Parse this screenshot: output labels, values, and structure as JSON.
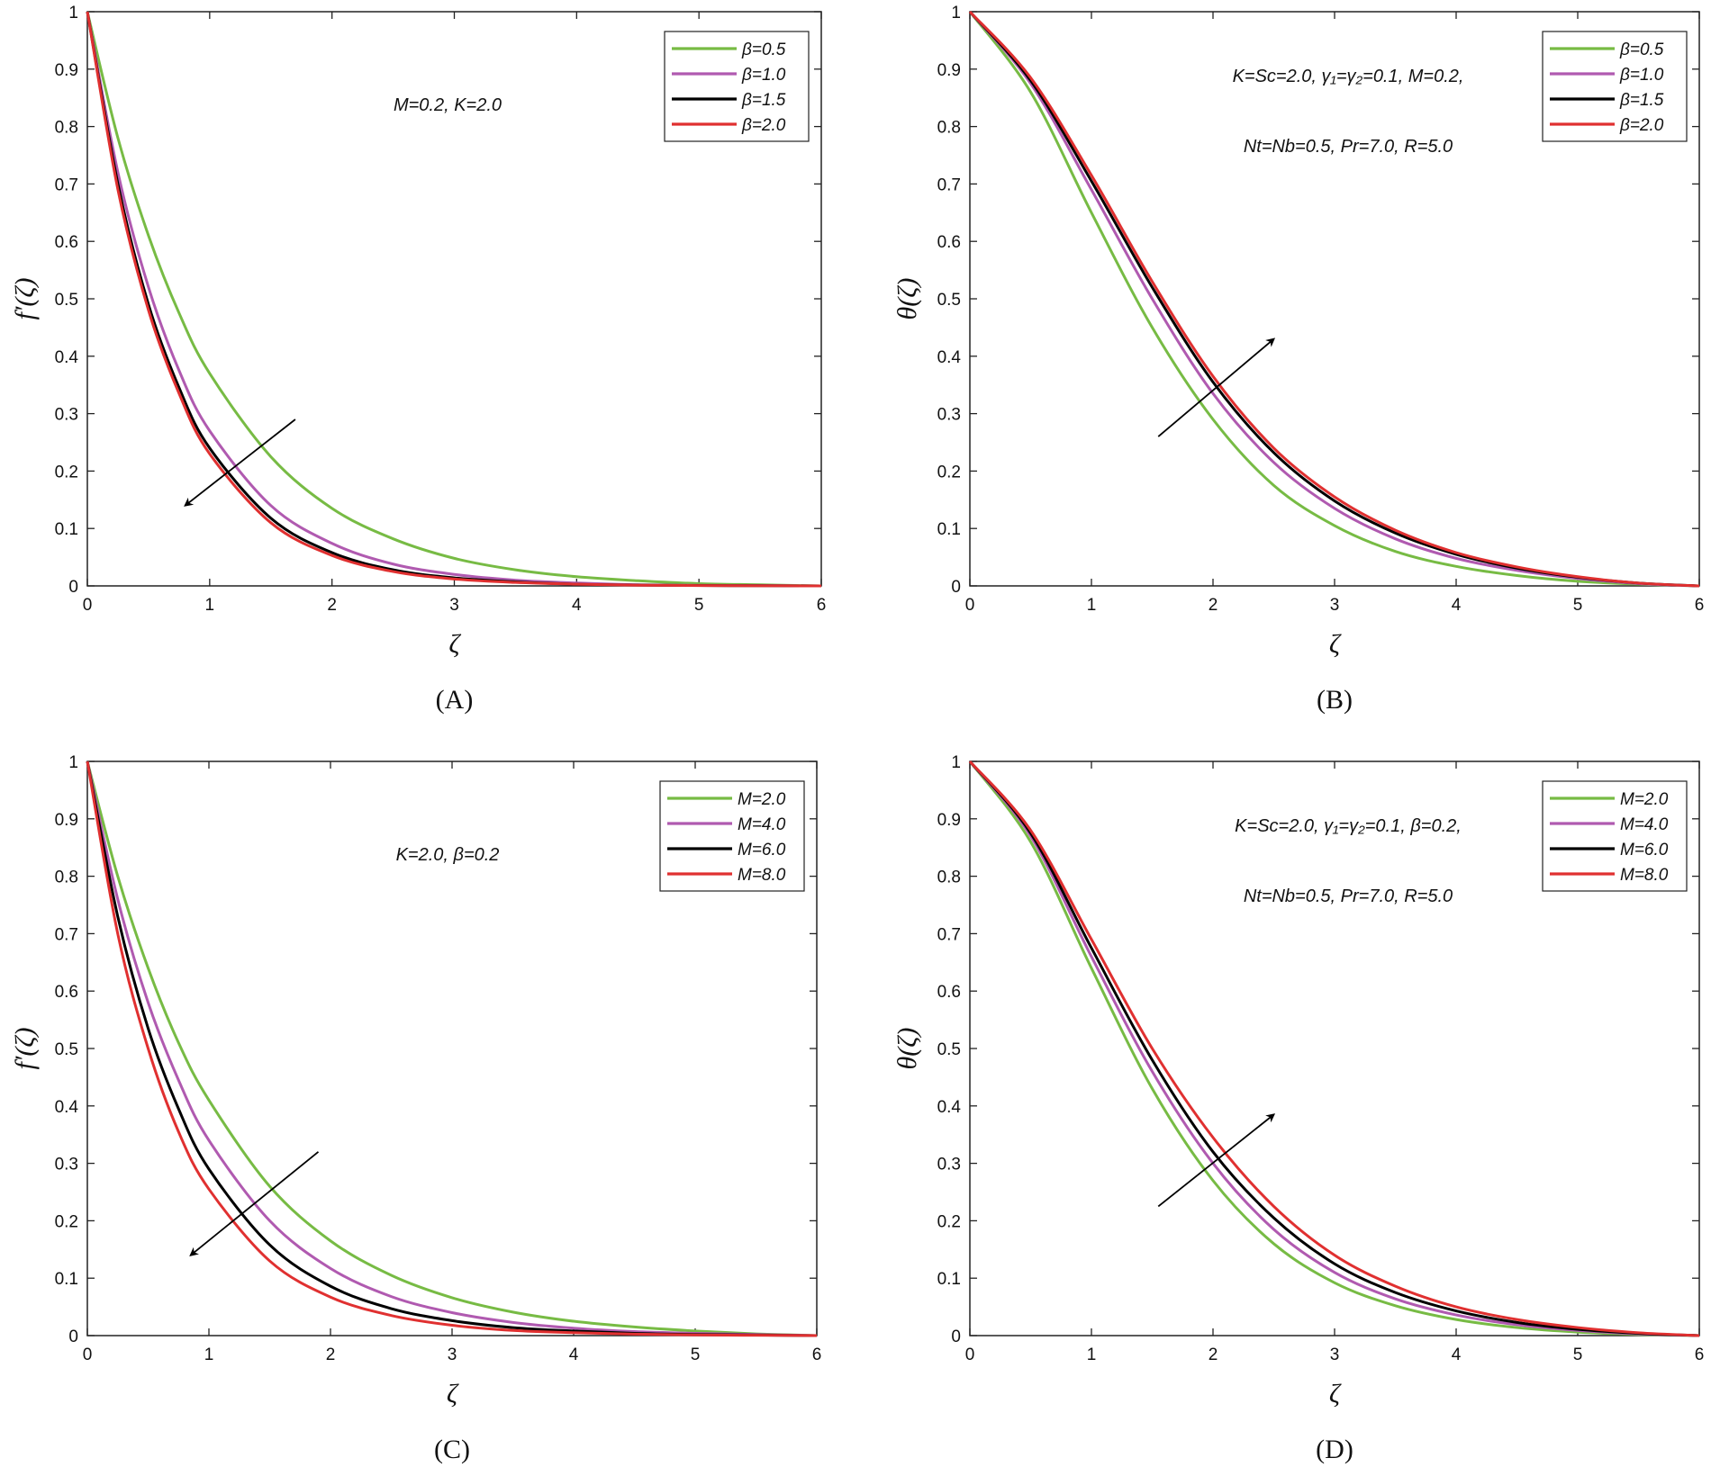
{
  "chart_data": [
    {
      "id": "A",
      "type": "line",
      "caption": "(A)",
      "xlabel": "ζ",
      "ylabel": "f′(ζ)",
      "xlim": [
        0,
        6
      ],
      "ylim": [
        0,
        1
      ],
      "xticks": [
        "0",
        "1",
        "2",
        "3",
        "4",
        "5",
        "6"
      ],
      "yticks": [
        "0",
        "0.1",
        "0.2",
        "0.3",
        "0.4",
        "0.5",
        "0.6",
        "0.7",
        "0.8",
        "0.9",
        "1"
      ],
      "annotations": [
        "M=0.2, K=2.0"
      ],
      "arrow_direction": "down-left",
      "arrow": {
        "from": [
          1.7,
          0.29
        ],
        "to": [
          0.8,
          0.14
        ]
      },
      "legend": [
        "β=0.5",
        "β=1.0",
        "β=1.5",
        "β=2.0"
      ],
      "legend_position": "top-right",
      "x": [
        0,
        0.25,
        0.5,
        0.75,
        1,
        1.5,
        2,
        2.5,
        3,
        3.5,
        4,
        4.5,
        5,
        5.5,
        6
      ],
      "series": [
        {
          "name": "β=0.5",
          "color": "#77bb44",
          "values": [
            1,
            0.78,
            0.61,
            0.475,
            0.37,
            0.225,
            0.135,
            0.082,
            0.048,
            0.028,
            0.016,
            0.009,
            0.004,
            0.002,
            0
          ]
        },
        {
          "name": "β=1.0",
          "color": "#b05ab0",
          "values": [
            1,
            0.72,
            0.52,
            0.375,
            0.27,
            0.14,
            0.074,
            0.038,
            0.02,
            0.01,
            0.005,
            0.002,
            0.001,
            0.0005,
            0
          ]
        },
        {
          "name": "β=1.5",
          "color": "#000000",
          "values": [
            1,
            0.7,
            0.49,
            0.345,
            0.24,
            0.118,
            0.058,
            0.028,
            0.014,
            0.007,
            0.003,
            0.0015,
            0.0007,
            0.0003,
            0
          ]
        },
        {
          "name": "β=2.0",
          "color": "#e03030",
          "values": [
            1,
            0.69,
            0.48,
            0.335,
            0.23,
            0.11,
            0.053,
            0.025,
            0.012,
            0.006,
            0.003,
            0.0012,
            0.0006,
            0.0002,
            0
          ]
        }
      ]
    },
    {
      "id": "B",
      "type": "line",
      "caption": "(B)",
      "xlabel": "ζ",
      "ylabel": "θ(ζ)",
      "xlim": [
        0,
        6
      ],
      "ylim": [
        0,
        1
      ],
      "xticks": [
        "0",
        "1",
        "2",
        "3",
        "4",
        "5",
        "6"
      ],
      "yticks": [
        "0",
        "0.1",
        "0.2",
        "0.3",
        "0.4",
        "0.5",
        "0.6",
        "0.7",
        "0.8",
        "0.9",
        "1"
      ],
      "annotations": [
        "K=Sc=2.0, γ₁=γ₂=0.1, M=0.2,",
        "Nt=Nb=0.5, Pr=7.0, R=5.0"
      ],
      "arrow_direction": "up-right",
      "arrow": {
        "from": [
          1.55,
          0.26
        ],
        "to": [
          2.5,
          0.43
        ]
      },
      "legend": [
        "β=0.5",
        "β=1.0",
        "β=1.5",
        "β=2.0"
      ],
      "legend_position": "top-right",
      "x": [
        0,
        0.5,
        1,
        1.5,
        2,
        2.5,
        3,
        3.5,
        4,
        4.5,
        5,
        5.5,
        6
      ],
      "series": [
        {
          "name": "β=0.5",
          "color": "#77bb44",
          "values": [
            1,
            0.86,
            0.65,
            0.45,
            0.29,
            0.175,
            0.105,
            0.06,
            0.034,
            0.018,
            0.008,
            0.003,
            0
          ]
        },
        {
          "name": "β=1.0",
          "color": "#b05ab0",
          "values": [
            1,
            0.875,
            0.69,
            0.5,
            0.335,
            0.215,
            0.135,
            0.082,
            0.048,
            0.027,
            0.013,
            0.004,
            0
          ]
        },
        {
          "name": "β=1.5",
          "color": "#000000",
          "values": [
            1,
            0.88,
            0.705,
            0.52,
            0.355,
            0.232,
            0.148,
            0.092,
            0.055,
            0.031,
            0.015,
            0.005,
            0
          ]
        },
        {
          "name": "β=2.0",
          "color": "#e03030",
          "values": [
            1,
            0.885,
            0.715,
            0.53,
            0.365,
            0.24,
            0.155,
            0.097,
            0.058,
            0.033,
            0.016,
            0.005,
            0
          ]
        }
      ]
    },
    {
      "id": "C",
      "type": "line",
      "caption": "(C)",
      "xlabel": "ζ",
      "ylabel": "f′(ζ)",
      "xlim": [
        0,
        6
      ],
      "ylim": [
        0,
        1
      ],
      "xticks": [
        "0",
        "1",
        "2",
        "3",
        "4",
        "5",
        "6"
      ],
      "yticks": [
        "0",
        "0.1",
        "0.2",
        "0.3",
        "0.4",
        "0.5",
        "0.6",
        "0.7",
        "0.8",
        "0.9",
        "1"
      ],
      "annotations": [
        "K=2.0, β=0.2"
      ],
      "arrow_direction": "down-left",
      "arrow": {
        "from": [
          1.9,
          0.32
        ],
        "to": [
          0.85,
          0.14
        ]
      },
      "legend": [
        "M=2.0",
        "M=4.0",
        "M=6.0",
        "M=8.0"
      ],
      "legend_position": "top-right",
      "x": [
        0,
        0.25,
        0.5,
        0.75,
        1,
        1.5,
        2,
        2.5,
        3,
        3.5,
        4,
        4.5,
        5,
        5.5,
        6
      ],
      "series": [
        {
          "name": "M=2.0",
          "color": "#77bb44",
          "values": [
            1,
            0.8,
            0.64,
            0.51,
            0.41,
            0.26,
            0.165,
            0.105,
            0.066,
            0.041,
            0.025,
            0.015,
            0.008,
            0.003,
            0
          ]
        },
        {
          "name": "M=4.0",
          "color": "#b05ab0",
          "values": [
            1,
            0.76,
            0.58,
            0.445,
            0.34,
            0.2,
            0.117,
            0.068,
            0.04,
            0.023,
            0.013,
            0.007,
            0.004,
            0.002,
            0
          ]
        },
        {
          "name": "M=6.0",
          "color": "#000000",
          "values": [
            1,
            0.73,
            0.535,
            0.395,
            0.29,
            0.158,
            0.086,
            0.047,
            0.026,
            0.014,
            0.008,
            0.004,
            0.002,
            0.001,
            0
          ]
        },
        {
          "name": "M=8.0",
          "color": "#e03030",
          "values": [
            1,
            0.7,
            0.5,
            0.355,
            0.255,
            0.13,
            0.067,
            0.035,
            0.018,
            0.009,
            0.005,
            0.0025,
            0.0012,
            0.0005,
            0
          ]
        }
      ]
    },
    {
      "id": "D",
      "type": "line",
      "caption": "(D)",
      "xlabel": "ζ",
      "ylabel": "θ(ζ)",
      "xlim": [
        0,
        6
      ],
      "ylim": [
        0,
        1
      ],
      "xticks": [
        "0",
        "1",
        "2",
        "3",
        "4",
        "5",
        "6"
      ],
      "yticks": [
        "0",
        "0.1",
        "0.2",
        "0.3",
        "0.4",
        "0.5",
        "0.6",
        "0.7",
        "0.8",
        "0.9",
        "1"
      ],
      "annotations": [
        "K=Sc=2.0, γ₁=γ₂=0.1, β=0.2,",
        "Nt=Nb=0.5, Pr=7.0, R=5.0"
      ],
      "arrow_direction": "up-right",
      "arrow": {
        "from": [
          1.55,
          0.225
        ],
        "to": [
          2.5,
          0.385
        ]
      },
      "legend": [
        "M=2.0",
        "M=4.0",
        "M=6.0",
        "M=8.0"
      ],
      "legend_position": "top-right",
      "x": [
        0,
        0.5,
        1,
        1.5,
        2,
        2.5,
        3,
        3.5,
        4,
        4.5,
        5,
        5.5,
        6
      ],
      "series": [
        {
          "name": "M=2.0",
          "color": "#77bb44",
          "values": [
            1,
            0.86,
            0.64,
            0.43,
            0.27,
            0.16,
            0.092,
            0.052,
            0.028,
            0.014,
            0.006,
            0.002,
            0
          ]
        },
        {
          "name": "M=4.0",
          "color": "#b05ab0",
          "values": [
            1,
            0.87,
            0.66,
            0.46,
            0.3,
            0.185,
            0.11,
            0.064,
            0.036,
            0.019,
            0.009,
            0.003,
            0
          ]
        },
        {
          "name": "M=6.0",
          "color": "#000000",
          "values": [
            1,
            0.875,
            0.675,
            0.48,
            0.32,
            0.205,
            0.125,
            0.075,
            0.043,
            0.023,
            0.011,
            0.004,
            0
          ]
        },
        {
          "name": "M=8.0",
          "color": "#e03030",
          "values": [
            1,
            0.88,
            0.69,
            0.5,
            0.345,
            0.225,
            0.14,
            0.086,
            0.05,
            0.028,
            0.014,
            0.005,
            0
          ]
        }
      ]
    }
  ]
}
